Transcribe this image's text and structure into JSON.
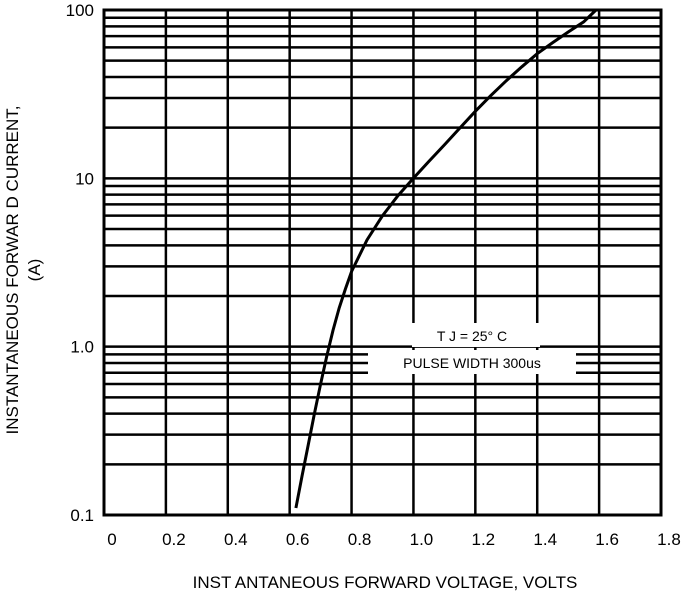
{
  "chart_data": {
    "type": "line",
    "xlabel": "INST ANTANEOUS FORWARD VOLTAGE, VOLTS",
    "ylabel_line1": "INSTANTANEOUS FORWAR D CURRENT,",
    "ylabel_line2": "(A)",
    "xlim": [
      0,
      1.8
    ],
    "ylim": [
      0.1,
      100
    ],
    "yscale": "log",
    "grid": true,
    "x_ticks": [
      "0",
      "0.2",
      "0.4",
      "0.6",
      "0.8",
      "1.0",
      "1.2",
      "1.4",
      "1.6",
      "1.8"
    ],
    "y_ticks": [
      "0.1",
      "1.0",
      "10",
      "100"
    ],
    "series": [
      {
        "x": [
          0.62,
          0.64,
          0.66,
          0.68,
          0.7,
          0.72,
          0.74,
          0.76,
          0.78,
          0.8,
          0.85,
          0.9,
          0.95,
          1.0,
          1.05,
          1.1,
          1.15,
          1.2,
          1.25,
          1.3,
          1.35,
          1.4,
          1.45,
          1.5,
          1.55,
          1.59
        ],
        "y": [
          0.11,
          0.17,
          0.26,
          0.4,
          0.6,
          0.88,
          1.25,
          1.7,
          2.2,
          2.8,
          4.3,
          6.0,
          7.9,
          10.0,
          12.6,
          15.8,
          19.9,
          25.0,
          31.0,
          38.0,
          46.0,
          55.0,
          64.0,
          74.0,
          85.0,
          100.0
        ]
      }
    ],
    "annotations": [
      "T J = 25° C",
      "PULSE WIDTH 300us"
    ]
  }
}
